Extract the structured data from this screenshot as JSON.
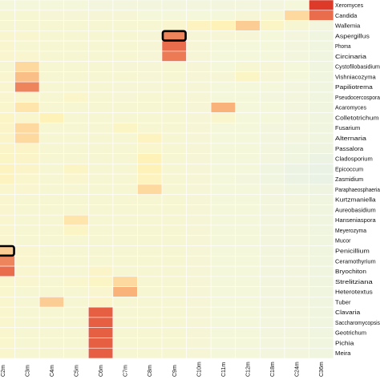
{
  "chart_data": {
    "type": "heatmap",
    "x_labels": [
      "C2m",
      "C3m",
      "C4m",
      "C5m",
      "C6m",
      "C7m",
      "C8m",
      "C9m",
      "C10m",
      "C11m",
      "C12m",
      "C18m",
      "C24m",
      "C36m"
    ],
    "y_labels": [
      "Xeromyces",
      "Candida",
      "Wallemia",
      "Aspergillus",
      "Phoma",
      "Circinaria",
      "Cystofilobasidium",
      "Vishniacozyma",
      "Papiliotrema",
      "Pseudocercospora",
      "Acaromyces",
      "Colletotrichum",
      "Fusarium",
      "Alternaria",
      "Passalora",
      "Cladosporium",
      "Epicoccum",
      "Zasmidium",
      "Paraphaeosphaeria",
      "Kurtzmaniella",
      "Aureobasidium",
      "Hanseniaspora",
      "Meyerozyma",
      "Mucor",
      "Penicillium",
      "Ceramothyrium",
      "Bryochiton",
      "Strelitziana",
      "Heterotextus",
      "Tuber",
      "Clavaria",
      "Saccharomycopsis",
      "Geotrichum",
      "Pichia",
      "Meira"
    ],
    "values": [
      [
        0.26,
        0.26,
        0.26,
        0.26,
        0.24,
        0.24,
        0.24,
        0.24,
        0.24,
        0.24,
        0.24,
        0.24,
        0.26,
        0.96
      ],
      [
        0.3,
        0.3,
        0.28,
        0.28,
        0.28,
        0.28,
        0.26,
        0.26,
        0.26,
        0.26,
        0.28,
        0.3,
        0.55,
        0.85
      ],
      [
        0.3,
        0.3,
        0.3,
        0.3,
        0.3,
        0.3,
        0.3,
        0.32,
        0.4,
        0.45,
        0.6,
        0.38,
        0.3,
        0.24
      ],
      [
        0.32,
        0.32,
        0.3,
        0.3,
        0.3,
        0.3,
        0.28,
        0.8,
        0.28,
        0.28,
        0.28,
        0.26,
        0.24,
        0.22
      ],
      [
        0.32,
        0.3,
        0.3,
        0.3,
        0.3,
        0.3,
        0.28,
        0.85,
        0.28,
        0.26,
        0.26,
        0.26,
        0.24,
        0.22
      ],
      [
        0.32,
        0.32,
        0.3,
        0.3,
        0.3,
        0.3,
        0.28,
        0.82,
        0.28,
        0.26,
        0.26,
        0.26,
        0.24,
        0.22
      ],
      [
        0.3,
        0.55,
        0.3,
        0.3,
        0.3,
        0.28,
        0.28,
        0.3,
        0.28,
        0.26,
        0.3,
        0.28,
        0.26,
        0.22
      ],
      [
        0.32,
        0.65,
        0.3,
        0.3,
        0.3,
        0.3,
        0.28,
        0.3,
        0.28,
        0.28,
        0.38,
        0.28,
        0.26,
        0.22
      ],
      [
        0.32,
        0.8,
        0.3,
        0.3,
        0.3,
        0.28,
        0.28,
        0.3,
        0.28,
        0.26,
        0.26,
        0.26,
        0.24,
        0.22
      ],
      [
        0.32,
        0.34,
        0.3,
        0.35,
        0.3,
        0.28,
        0.3,
        0.3,
        0.28,
        0.26,
        0.26,
        0.24,
        0.24,
        0.22
      ],
      [
        0.34,
        0.5,
        0.3,
        0.3,
        0.3,
        0.3,
        0.3,
        0.3,
        0.28,
        0.7,
        0.26,
        0.26,
        0.24,
        0.22
      ],
      [
        0.38,
        0.34,
        0.45,
        0.3,
        0.3,
        0.3,
        0.3,
        0.3,
        0.28,
        0.34,
        0.26,
        0.26,
        0.24,
        0.22
      ],
      [
        0.36,
        0.55,
        0.3,
        0.3,
        0.3,
        0.38,
        0.3,
        0.3,
        0.28,
        0.26,
        0.26,
        0.24,
        0.24,
        0.22
      ],
      [
        0.36,
        0.55,
        0.3,
        0.3,
        0.3,
        0.3,
        0.4,
        0.3,
        0.28,
        0.26,
        0.26,
        0.24,
        0.24,
        0.22
      ],
      [
        0.36,
        0.36,
        0.3,
        0.3,
        0.3,
        0.3,
        0.34,
        0.3,
        0.28,
        0.26,
        0.26,
        0.24,
        0.22,
        0.2
      ],
      [
        0.38,
        0.36,
        0.3,
        0.3,
        0.3,
        0.3,
        0.45,
        0.3,
        0.28,
        0.26,
        0.26,
        0.24,
        0.22,
        0.18
      ],
      [
        0.4,
        0.36,
        0.3,
        0.38,
        0.3,
        0.3,
        0.45,
        0.3,
        0.28,
        0.26,
        0.26,
        0.22,
        0.18,
        0.16
      ],
      [
        0.4,
        0.34,
        0.3,
        0.32,
        0.3,
        0.3,
        0.4,
        0.3,
        0.28,
        0.26,
        0.24,
        0.22,
        0.18,
        0.16
      ],
      [
        0.34,
        0.32,
        0.3,
        0.3,
        0.3,
        0.3,
        0.55,
        0.3,
        0.28,
        0.26,
        0.26,
        0.24,
        0.22,
        0.2
      ],
      [
        0.32,
        0.3,
        0.3,
        0.3,
        0.3,
        0.3,
        0.3,
        0.3,
        0.28,
        0.26,
        0.26,
        0.24,
        0.24,
        0.22
      ],
      [
        0.32,
        0.3,
        0.3,
        0.3,
        0.3,
        0.3,
        0.3,
        0.3,
        0.28,
        0.26,
        0.26,
        0.24,
        0.24,
        0.22
      ],
      [
        0.32,
        0.3,
        0.3,
        0.5,
        0.3,
        0.3,
        0.3,
        0.3,
        0.28,
        0.26,
        0.26,
        0.24,
        0.24,
        0.22
      ],
      [
        0.32,
        0.3,
        0.3,
        0.38,
        0.3,
        0.3,
        0.3,
        0.3,
        0.28,
        0.26,
        0.26,
        0.24,
        0.24,
        0.22
      ],
      [
        0.32,
        0.3,
        0.3,
        0.3,
        0.3,
        0.3,
        0.3,
        0.3,
        0.28,
        0.26,
        0.26,
        0.24,
        0.24,
        0.22
      ],
      [
        0.6,
        0.32,
        0.3,
        0.3,
        0.3,
        0.3,
        0.3,
        0.3,
        0.28,
        0.26,
        0.26,
        0.24,
        0.24,
        0.22
      ],
      [
        0.8,
        0.32,
        0.3,
        0.3,
        0.3,
        0.3,
        0.3,
        0.3,
        0.28,
        0.26,
        0.26,
        0.24,
        0.24,
        0.22
      ],
      [
        0.85,
        0.32,
        0.3,
        0.3,
        0.36,
        0.3,
        0.3,
        0.3,
        0.28,
        0.26,
        0.26,
        0.24,
        0.24,
        0.22
      ],
      [
        0.34,
        0.32,
        0.3,
        0.34,
        0.38,
        0.55,
        0.3,
        0.3,
        0.28,
        0.26,
        0.26,
        0.24,
        0.24,
        0.22
      ],
      [
        0.34,
        0.3,
        0.3,
        0.3,
        0.32,
        0.7,
        0.3,
        0.3,
        0.28,
        0.26,
        0.26,
        0.24,
        0.24,
        0.22
      ],
      [
        0.34,
        0.3,
        0.6,
        0.3,
        0.36,
        0.3,
        0.3,
        0.3,
        0.28,
        0.26,
        0.26,
        0.24,
        0.24,
        0.22
      ],
      [
        0.34,
        0.3,
        0.3,
        0.3,
        0.88,
        0.3,
        0.3,
        0.3,
        0.28,
        0.26,
        0.26,
        0.24,
        0.24,
        0.22
      ],
      [
        0.34,
        0.3,
        0.3,
        0.3,
        0.88,
        0.3,
        0.3,
        0.3,
        0.28,
        0.26,
        0.26,
        0.24,
        0.24,
        0.22
      ],
      [
        0.34,
        0.3,
        0.3,
        0.3,
        0.88,
        0.3,
        0.3,
        0.3,
        0.28,
        0.26,
        0.26,
        0.24,
        0.24,
        0.22
      ],
      [
        0.34,
        0.3,
        0.3,
        0.3,
        0.88,
        0.3,
        0.3,
        0.3,
        0.28,
        0.26,
        0.26,
        0.24,
        0.24,
        0.22
      ],
      [
        0.34,
        0.3,
        0.3,
        0.3,
        0.88,
        0.3,
        0.3,
        0.3,
        0.28,
        0.26,
        0.26,
        0.24,
        0.24,
        0.22
      ]
    ],
    "highlighted_cells": [
      {
        "row": "Aspergillus",
        "col": "C9m"
      },
      {
        "row": "Penicillium",
        "col": "C2m"
      }
    ],
    "color_scale": {
      "low": "#d6e9f2",
      "mid_low": "#f4f7dc",
      "mid": "#fff2b8",
      "mid_high": "#f9b27a",
      "high": "#d9281d"
    },
    "colors": {
      "grid_line": "#ffffff",
      "highlight_border": "#000000"
    },
    "legend": "none",
    "title": "",
    "xlabel": "",
    "ylabel": ""
  }
}
